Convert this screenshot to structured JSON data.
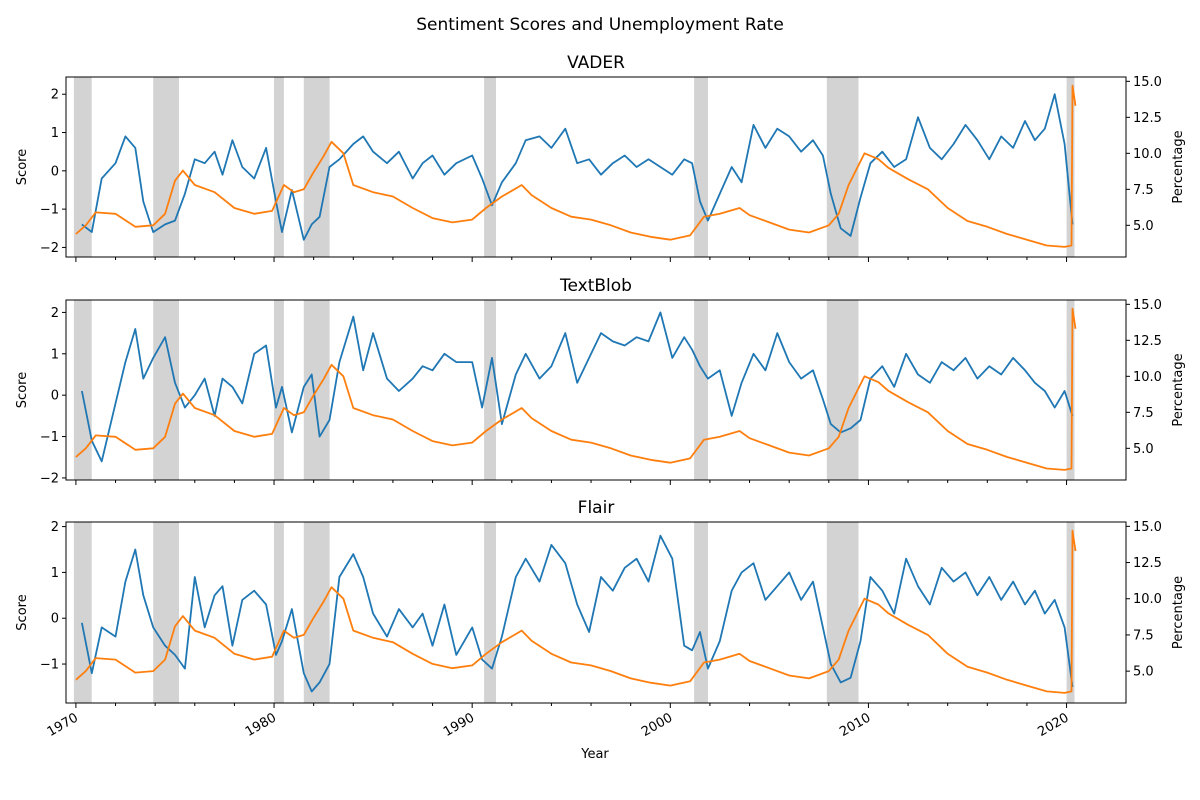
{
  "chart_data": {
    "type": "line",
    "title": "Sentiment Scores and Unemployment Rate",
    "xlabel": "Year",
    "xlim": [
      1969.5,
      2023.0
    ],
    "x_ticks": [
      "1970",
      "1980",
      "1990",
      "2000",
      "2010",
      "2020"
    ],
    "recessions": [
      [
        1969.9,
        1970.8
      ],
      [
        1973.9,
        1975.2
      ],
      [
        1980.0,
        1980.5
      ],
      [
        1981.5,
        1982.8
      ],
      [
        1990.6,
        1991.2
      ],
      [
        2001.2,
        2001.9
      ],
      [
        2007.9,
        2009.5
      ],
      [
        2020.0,
        2020.4
      ]
    ],
    "colors": {
      "sentiment": "#1f77b4",
      "unemployment": "#ff7f0e",
      "recession": "#d3d3d3"
    },
    "unemployment": {
      "ylabel": "Percentage",
      "ylim": [
        2.8,
        15.3
      ],
      "y_ticks": [
        "5.0",
        "7.5",
        "10.0",
        "12.5",
        "15.0"
      ],
      "x": [
        1970.0,
        1970.5,
        1971.0,
        1972.0,
        1973.0,
        1973.9,
        1974.5,
        1975.0,
        1975.4,
        1976.0,
        1977.0,
        1978.0,
        1979.0,
        1979.9,
        1980.5,
        1981.0,
        1981.5,
        1982.0,
        1982.5,
        1982.9,
        1983.5,
        1984.0,
        1985.0,
        1986.0,
        1987.0,
        1988.0,
        1989.0,
        1990.0,
        1990.7,
        1991.5,
        1992.0,
        1992.5,
        1993.0,
        1994.0,
        1995.0,
        1996.0,
        1997.0,
        1998.0,
        1999.0,
        2000.0,
        2001.0,
        2001.7,
        2002.5,
        2003.5,
        2004.0,
        2005.0,
        2006.0,
        2007.0,
        2008.0,
        2008.5,
        2009.0,
        2009.8,
        2010.5,
        2011.0,
        2012.0,
        2013.0,
        2014.0,
        2015.0,
        2016.0,
        2017.0,
        2018.0,
        2019.0,
        2019.9,
        2020.25,
        2020.3,
        2020.45
      ],
      "values": [
        4.4,
        5.0,
        5.9,
        5.8,
        4.9,
        5.0,
        5.8,
        8.1,
        8.8,
        7.8,
        7.3,
        6.2,
        5.8,
        6.0,
        7.8,
        7.3,
        7.5,
        8.7,
        9.8,
        10.8,
        10.0,
        7.8,
        7.3,
        7.0,
        6.2,
        5.5,
        5.2,
        5.4,
        6.2,
        7.0,
        7.4,
        7.8,
        7.1,
        6.2,
        5.6,
        5.4,
        5.0,
        4.5,
        4.2,
        4.0,
        4.3,
        5.6,
        5.8,
        6.2,
        5.7,
        5.2,
        4.7,
        4.5,
        5.0,
        5.8,
        7.8,
        10.0,
        9.6,
        9.0,
        8.2,
        7.5,
        6.2,
        5.3,
        4.9,
        4.4,
        4.0,
        3.6,
        3.5,
        3.6,
        14.7,
        13.3
      ]
    },
    "series": [
      {
        "title": "VADER",
        "ylabel": "Score",
        "ylim": [
          -2.25,
          2.45
        ],
        "y_ticks": [
          "−2",
          "−1",
          "0",
          "1",
          "2"
        ],
        "x": [
          1970.3,
          1970.8,
          1971.3,
          1972.0,
          1972.5,
          1973.0,
          1973.4,
          1973.9,
          1974.5,
          1975.0,
          1975.5,
          1976.0,
          1976.5,
          1977.0,
          1977.4,
          1977.9,
          1978.4,
          1979.0,
          1979.6,
          1980.1,
          1980.4,
          1980.9,
          1981.5,
          1981.9,
          1982.3,
          1982.8,
          1983.3,
          1984.0,
          1984.5,
          1985.0,
          1985.7,
          1986.3,
          1987.0,
          1987.5,
          1988.0,
          1988.6,
          1989.2,
          1990.0,
          1990.5,
          1991.0,
          1991.5,
          1992.2,
          1992.7,
          1993.4,
          1994.0,
          1994.7,
          1995.3,
          1995.9,
          1996.5,
          1997.1,
          1997.7,
          1998.3,
          1998.9,
          1999.5,
          2000.1,
          2000.7,
          2001.1,
          2001.5,
          2001.9,
          2002.5,
          2003.1,
          2003.6,
          2004.2,
          2004.8,
          2005.4,
          2006.0,
          2006.6,
          2007.2,
          2007.7,
          2008.1,
          2008.6,
          2009.1,
          2009.6,
          2010.1,
          2010.7,
          2011.3,
          2011.9,
          2012.5,
          2013.1,
          2013.7,
          2014.3,
          2014.9,
          2015.5,
          2016.1,
          2016.7,
          2017.3,
          2017.9,
          2018.4,
          2018.9,
          2019.4,
          2019.9,
          2020.3
        ],
        "values": [
          -1.4,
          -1.6,
          -0.2,
          0.2,
          0.9,
          0.6,
          -0.8,
          -1.6,
          -1.4,
          -1.3,
          -0.6,
          0.3,
          0.2,
          0.5,
          -0.1,
          0.8,
          0.1,
          -0.2,
          0.6,
          -0.8,
          -1.6,
          -0.5,
          -1.8,
          -1.4,
          -1.2,
          0.1,
          0.3,
          0.7,
          0.9,
          0.5,
          0.2,
          0.5,
          -0.2,
          0.2,
          0.4,
          -0.1,
          0.2,
          0.4,
          -0.2,
          -0.9,
          -0.3,
          0.2,
          0.8,
          0.9,
          0.6,
          1.1,
          0.2,
          0.3,
          -0.1,
          0.2,
          0.4,
          0.1,
          0.3,
          0.1,
          -0.1,
          0.3,
          0.2,
          -0.8,
          -1.3,
          -0.6,
          0.1,
          -0.3,
          1.2,
          0.6,
          1.1,
          0.9,
          0.5,
          0.8,
          0.4,
          -0.6,
          -1.5,
          -1.7,
          -0.7,
          0.2,
          0.5,
          0.1,
          0.3,
          1.4,
          0.6,
          0.3,
          0.7,
          1.2,
          0.8,
          0.3,
          0.9,
          0.6,
          1.3,
          0.8,
          1.1,
          2.0,
          0.7,
          -1.4
        ]
      },
      {
        "title": "TextBlob",
        "ylabel": "Score",
        "ylim": [
          -2.05,
          2.3
        ],
        "y_ticks": [
          "−2",
          "−1",
          "0",
          "1",
          "2"
        ],
        "x": [
          1970.3,
          1970.8,
          1971.3,
          1972.0,
          1972.5,
          1973.0,
          1973.4,
          1973.9,
          1974.5,
          1975.0,
          1975.5,
          1976.0,
          1976.5,
          1977.0,
          1977.4,
          1977.9,
          1978.4,
          1979.0,
          1979.6,
          1980.1,
          1980.4,
          1980.9,
          1981.5,
          1981.9,
          1982.3,
          1982.8,
          1983.3,
          1984.0,
          1984.5,
          1985.0,
          1985.7,
          1986.3,
          1987.0,
          1987.5,
          1988.0,
          1988.6,
          1989.2,
          1990.0,
          1990.5,
          1991.0,
          1991.5,
          1992.2,
          1992.7,
          1993.4,
          1994.0,
          1994.7,
          1995.3,
          1995.9,
          1996.5,
          1997.1,
          1997.7,
          1998.3,
          1998.9,
          1999.5,
          2000.1,
          2000.7,
          2001.1,
          2001.5,
          2001.9,
          2002.5,
          2003.1,
          2003.6,
          2004.2,
          2004.8,
          2005.4,
          2006.0,
          2006.6,
          2007.2,
          2007.7,
          2008.1,
          2008.6,
          2009.1,
          2009.6,
          2010.1,
          2010.7,
          2011.3,
          2011.9,
          2012.5,
          2013.1,
          2013.7,
          2014.3,
          2014.9,
          2015.5,
          2016.1,
          2016.7,
          2017.3,
          2017.9,
          2018.4,
          2018.9,
          2019.4,
          2019.9,
          2020.3
        ],
        "values": [
          0.1,
          -1.1,
          -1.6,
          -0.2,
          0.8,
          1.6,
          0.4,
          0.9,
          1.4,
          0.3,
          -0.3,
          0.0,
          0.4,
          -0.5,
          0.4,
          0.2,
          -0.2,
          1.0,
          1.2,
          -0.3,
          0.2,
          -0.9,
          0.2,
          0.5,
          -1.0,
          -0.6,
          0.8,
          1.9,
          0.6,
          1.5,
          0.4,
          0.1,
          0.4,
          0.7,
          0.6,
          1.0,
          0.8,
          0.8,
          -0.3,
          0.9,
          -0.7,
          0.5,
          1.0,
          0.4,
          0.7,
          1.5,
          0.3,
          0.9,
          1.5,
          1.3,
          1.2,
          1.4,
          1.3,
          2.0,
          0.9,
          1.4,
          1.1,
          0.7,
          0.4,
          0.6,
          -0.5,
          0.3,
          1.0,
          0.6,
          1.5,
          0.8,
          0.4,
          0.6,
          -0.1,
          -0.7,
          -0.9,
          -0.8,
          -0.6,
          0.4,
          0.7,
          0.2,
          1.0,
          0.5,
          0.3,
          0.8,
          0.6,
          0.9,
          0.4,
          0.7,
          0.5,
          0.9,
          0.6,
          0.3,
          0.1,
          -0.3,
          0.1,
          -0.5
        ]
      },
      {
        "title": "Flair",
        "ylabel": "Score",
        "ylim": [
          -1.85,
          2.1
        ],
        "y_ticks": [
          "−1",
          "0",
          "1",
          "2"
        ],
        "x": [
          1970.3,
          1970.8,
          1971.3,
          1972.0,
          1972.5,
          1973.0,
          1973.4,
          1973.9,
          1974.5,
          1975.0,
          1975.5,
          1976.0,
          1976.5,
          1977.0,
          1977.4,
          1977.9,
          1978.4,
          1979.0,
          1979.6,
          1980.1,
          1980.4,
          1980.9,
          1981.5,
          1981.9,
          1982.3,
          1982.8,
          1983.3,
          1984.0,
          1984.5,
          1985.0,
          1985.7,
          1986.3,
          1987.0,
          1987.5,
          1988.0,
          1988.6,
          1989.2,
          1990.0,
          1990.5,
          1991.0,
          1991.5,
          1992.2,
          1992.7,
          1993.4,
          1994.0,
          1994.7,
          1995.3,
          1995.9,
          1996.5,
          1997.1,
          1997.7,
          1998.3,
          1998.9,
          1999.5,
          2000.1,
          2000.7,
          2001.1,
          2001.5,
          2001.9,
          2002.5,
          2003.1,
          2003.6,
          2004.2,
          2004.8,
          2005.4,
          2006.0,
          2006.6,
          2007.2,
          2007.7,
          2008.1,
          2008.6,
          2009.1,
          2009.6,
          2010.1,
          2010.7,
          2011.3,
          2011.9,
          2012.5,
          2013.1,
          2013.7,
          2014.3,
          2014.9,
          2015.5,
          2016.1,
          2016.7,
          2017.3,
          2017.9,
          2018.4,
          2018.9,
          2019.4,
          2019.9,
          2020.3
        ],
        "values": [
          -0.1,
          -1.2,
          -0.2,
          -0.4,
          0.8,
          1.5,
          0.5,
          -0.2,
          -0.6,
          -0.8,
          -1.1,
          0.9,
          -0.2,
          0.5,
          0.7,
          -0.6,
          0.4,
          0.6,
          0.3,
          -0.8,
          -0.5,
          0.2,
          -1.2,
          -1.6,
          -1.4,
          -1.0,
          0.9,
          1.4,
          0.9,
          0.1,
          -0.4,
          0.2,
          -0.2,
          0.1,
          -0.6,
          0.3,
          -0.8,
          -0.2,
          -0.9,
          -1.1,
          -0.4,
          0.9,
          1.3,
          0.8,
          1.6,
          1.2,
          0.3,
          -0.3,
          0.9,
          0.6,
          1.1,
          1.3,
          0.8,
          1.8,
          1.3,
          -0.6,
          -0.7,
          -0.3,
          -1.1,
          -0.5,
          0.6,
          1.0,
          1.2,
          0.4,
          0.7,
          1.0,
          0.4,
          0.8,
          -0.2,
          -1.0,
          -1.4,
          -1.3,
          -0.5,
          0.9,
          0.6,
          0.1,
          1.3,
          0.7,
          0.3,
          1.1,
          0.8,
          1.0,
          0.5,
          0.9,
          0.4,
          0.8,
          0.3,
          0.6,
          0.1,
          0.4,
          -0.2,
          -1.5
        ]
      }
    ]
  }
}
